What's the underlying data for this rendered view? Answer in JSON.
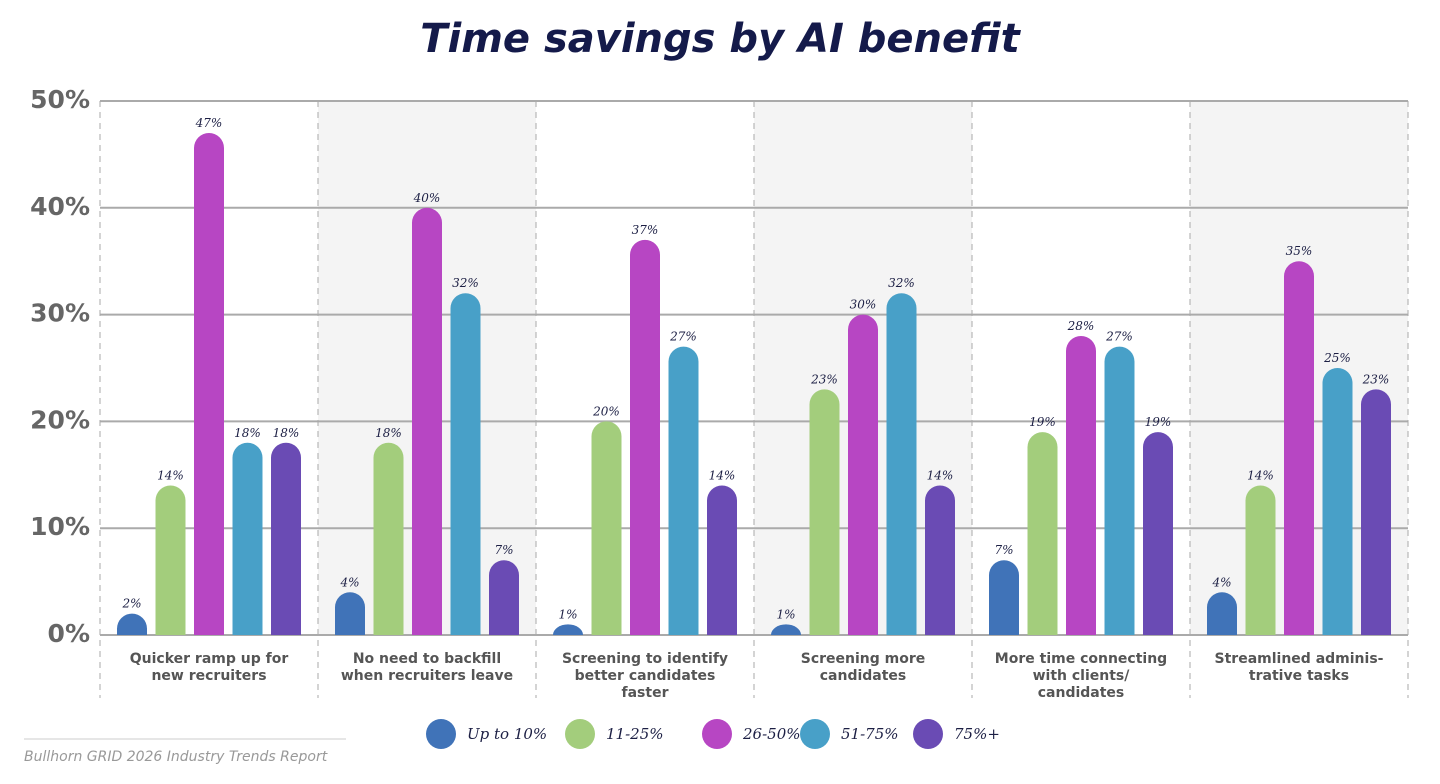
{
  "chart_data": {
    "type": "bar",
    "title": "Time savings by AI benefit",
    "categories": [
      "Quicker ramp up for\nnew recruiters",
      "No need to backfill\nwhen recruiters leave",
      "Screening to identify\nbetter candidates\nfaster",
      "Screening more\ncandidates",
      "More time connecting\nwith clients/\ncandidates",
      "Streamlined adminis-\ntrative tasks"
    ],
    "series": [
      {
        "name": "Up to 10%",
        "color": "#4073b8",
        "values": [
          2,
          4,
          1,
          1,
          7,
          4
        ],
        "value_labels": [
          "2%",
          "4%",
          "1%",
          "1%",
          "7%",
          "4%"
        ]
      },
      {
        "name": "11-25%",
        "color": "#a3cd7c",
        "values": [
          14,
          18,
          20,
          23,
          19,
          14
        ],
        "value_labels": [
          "14%",
          "18%",
          "20%",
          "23%",
          "19%",
          "14%"
        ]
      },
      {
        "name": "26-50%",
        "color": "#b746c3",
        "values": [
          47,
          40,
          37,
          30,
          28,
          35
        ],
        "value_labels": [
          "47%",
          "40%",
          "37%",
          "30%",
          "28%",
          "35%"
        ]
      },
      {
        "name": "51-75%",
        "color": "#48a0c8",
        "values": [
          18,
          32,
          27,
          32,
          27,
          25
        ],
        "value_labels": [
          "18%",
          "32%",
          "27%",
          "32%",
          "27%",
          "25%"
        ]
      },
      {
        "name": "75%+",
        "color": "#6a4bb4",
        "values": [
          18,
          7,
          14,
          14,
          19,
          23
        ],
        "value_labels": [
          "18%",
          "7%",
          "14%",
          "14%",
          "19%",
          "23%"
        ]
      }
    ],
    "ylim": [
      0,
      50
    ],
    "yticks": [
      {
        "value": 0,
        "label": "0%"
      },
      {
        "value": 10,
        "label": "10%"
      },
      {
        "value": 20,
        "label": "20%"
      },
      {
        "value": 30,
        "label": "30%"
      },
      {
        "value": 40,
        "label": "40%"
      },
      {
        "value": 50,
        "label": "50%"
      }
    ],
    "grid": true,
    "legend": "bottom",
    "source": "Bullhorn GRID 2026 Industry Trends Report"
  }
}
